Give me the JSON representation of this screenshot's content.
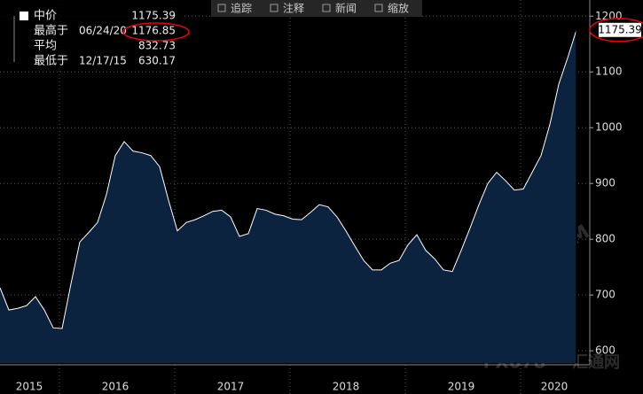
{
  "chart_data": {
    "type": "area",
    "toolbar": [
      "追踪",
      "注释",
      "新闻",
      "缩放"
    ],
    "legend": [
      {
        "name": "中价",
        "value": 1175.39
      },
      {
        "name": "最高于",
        "date": "06/24/20",
        "value": 1176.85
      },
      {
        "name": "平均",
        "value": 832.73
      },
      {
        "name": "最低于",
        "date": "12/17/15",
        "value": 630.17
      }
    ],
    "series": [
      {
        "color": "#ffffff",
        "fill": "#0c2340",
        "values": [
          713,
          673,
          676,
          681,
          697,
          673,
          641,
          640,
          720,
          795,
          812,
          830,
          880,
          950,
          975,
          958,
          955,
          950,
          930,
          870,
          815,
          830,
          835,
          842,
          850,
          852,
          840,
          805,
          810,
          855,
          852,
          845,
          842,
          836,
          835,
          848,
          862,
          858,
          840,
          815,
          788,
          762,
          745,
          745,
          757,
          762,
          790,
          808,
          780,
          765,
          745,
          742,
          780,
          820,
          862,
          900,
          920,
          905,
          888,
          890,
          920,
          950,
          1006,
          1078,
          1125,
          1175.39
        ]
      }
    ],
    "x_labels": [
      "2015",
      "2016",
      "2017",
      "2018",
      "2019",
      "2020"
    ],
    "ylim": [
      578,
      1229
    ],
    "yticks": [
      600,
      700,
      800,
      900,
      1000,
      1100,
      1200
    ],
    "grid": true,
    "watermarks": [
      "91PME.COM",
      "鑫汇宝贵金属",
      "FX678",
      "汇通网"
    ]
  }
}
